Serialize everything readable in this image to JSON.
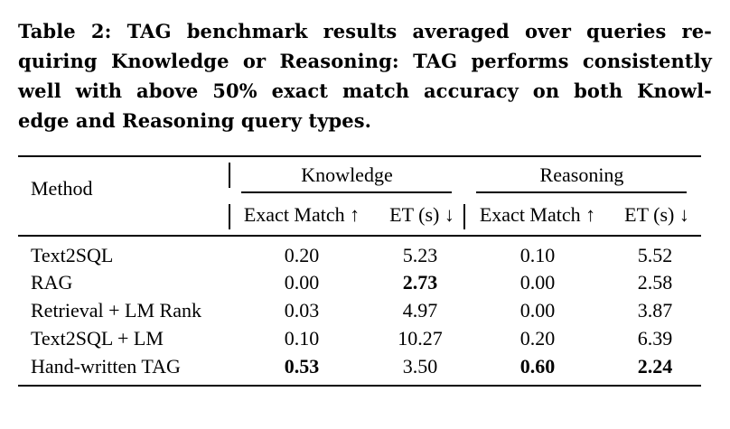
{
  "caption": {
    "lines": [
      "Table 2: TAG benchmark results averaged over queries re-",
      "quiring Knowledge or Reasoning: TAG performs consistently",
      "well with above 50% exact match accuracy on both Knowl-",
      "edge and Reasoning query types."
    ]
  },
  "table": {
    "method_header": "Method",
    "groups": [
      "Knowledge",
      "Reasoning"
    ],
    "subheaders": [
      "Exact Match ↑",
      "ET (s) ↓",
      "Exact Match ↑",
      "ET (s) ↓"
    ],
    "rows": [
      {
        "method": "Text2SQL",
        "values": [
          "0.20",
          "5.23",
          "0.10",
          "5.52"
        ],
        "bold": [
          false,
          false,
          false,
          false
        ]
      },
      {
        "method": "RAG",
        "values": [
          "0.00",
          "2.73",
          "0.00",
          "2.58"
        ],
        "bold": [
          false,
          true,
          false,
          false
        ]
      },
      {
        "method": "Retrieval + LM Rank",
        "values": [
          "0.03",
          "4.97",
          "0.00",
          "3.87"
        ],
        "bold": [
          false,
          false,
          false,
          false
        ]
      },
      {
        "method": "Text2SQL + LM",
        "values": [
          "0.10",
          "10.27",
          "0.20",
          "6.39"
        ],
        "bold": [
          false,
          false,
          false,
          false
        ]
      },
      {
        "method": "Hand-written TAG",
        "values": [
          "0.53",
          "3.50",
          "0.60",
          "2.24"
        ],
        "bold": [
          true,
          false,
          true,
          true
        ]
      }
    ]
  }
}
